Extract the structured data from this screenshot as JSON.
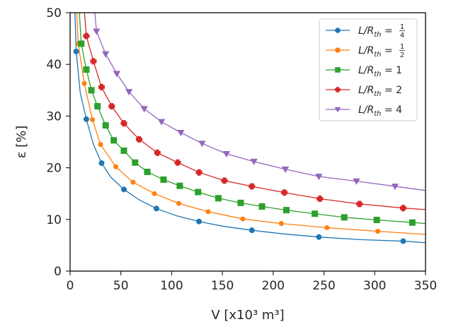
{
  "chart_data": {
    "type": "line",
    "xlabel": "V [x10³ m³]",
    "ylabel": "ε [%]",
    "xlim": [
      0,
      350
    ],
    "ylim": [
      0,
      50
    ],
    "x_ticks": [
      "0",
      "50",
      "100",
      "150",
      "200",
      "250",
      "300",
      "350"
    ],
    "y_ticks": [
      "0",
      "10",
      "20",
      "30",
      "40",
      "50"
    ],
    "grid": false,
    "legend_position": "top-right",
    "legend": [
      {
        "prefix": "L/R",
        "sub": "th",
        "eq": " = ",
        "frac_num": "1",
        "frac_den": "4",
        "value": "",
        "color": "#1f77b4",
        "marker": "circle"
      },
      {
        "prefix": "L/R",
        "sub": "th",
        "eq": " = ",
        "frac_num": "1",
        "frac_den": "2",
        "value": "",
        "color": "#ff7f0e",
        "marker": "circle"
      },
      {
        "prefix": "L/R",
        "sub": "th",
        "eq": " = ",
        "frac_num": "",
        "frac_den": "",
        "value": "1",
        "color": "#2ca02c",
        "marker": "square"
      },
      {
        "prefix": "L/R",
        "sub": "th",
        "eq": " = ",
        "frac_num": "",
        "frac_den": "",
        "value": "2",
        "color": "#d62728",
        "marker": "plus"
      },
      {
        "prefix": "L/R",
        "sub": "th",
        "eq": " = ",
        "frac_num": "",
        "frac_den": "",
        "value": "4",
        "color": "#9467bd",
        "marker": "triangle-down"
      }
    ],
    "series": [
      {
        "color": "#1f77b4",
        "marker": "circle",
        "marker_size": 4,
        "x": [
          6,
          16,
          31,
          53,
          85,
          127,
          179,
          245,
          328
        ],
        "y": [
          42.5,
          29.4,
          20.9,
          15.8,
          12.1,
          9.6,
          7.9,
          6.6,
          5.8
        ],
        "curve": [
          [
            3,
            60
          ],
          [
            6,
            42.5
          ],
          [
            10,
            34.5
          ],
          [
            16,
            29.4
          ],
          [
            23,
            24.5
          ],
          [
            31,
            20.9
          ],
          [
            40,
            18.2
          ],
          [
            53,
            15.8
          ],
          [
            68,
            13.8
          ],
          [
            85,
            12.1
          ],
          [
            105,
            10.7
          ],
          [
            127,
            9.6
          ],
          [
            150,
            8.7
          ],
          [
            179,
            7.9
          ],
          [
            210,
            7.2
          ],
          [
            245,
            6.6
          ],
          [
            285,
            6.1
          ],
          [
            328,
            5.8
          ],
          [
            350,
            5.5
          ]
        ]
      },
      {
        "color": "#ff7f0e",
        "marker": "circle",
        "marker_size": 3.5,
        "x": [
          8,
          14,
          22,
          30,
          45,
          62,
          83,
          107,
          136,
          170,
          208,
          253,
          303
        ],
        "y": [
          44.0,
          36.3,
          29.3,
          24.5,
          20.2,
          17.2,
          15.0,
          13.1,
          11.5,
          10.1,
          9.2,
          8.4,
          7.7
        ],
        "curve": [
          [
            4,
            60
          ],
          [
            8,
            44.0
          ],
          [
            14,
            36.3
          ],
          [
            22,
            29.3
          ],
          [
            30,
            24.5
          ],
          [
            45,
            20.2
          ],
          [
            62,
            17.2
          ],
          [
            83,
            15.0
          ],
          [
            107,
            13.1
          ],
          [
            136,
            11.5
          ],
          [
            170,
            10.1
          ],
          [
            208,
            9.2
          ],
          [
            253,
            8.4
          ],
          [
            303,
            7.7
          ],
          [
            350,
            7.1
          ]
        ]
      },
      {
        "color": "#2ca02c",
        "marker": "square",
        "marker_size": 4.5,
        "x": [
          11,
          16,
          21,
          27,
          35,
          43,
          53,
          64,
          76,
          92,
          108,
          126,
          146,
          168,
          189,
          213,
          241,
          270,
          302,
          337
        ],
        "y": [
          44.0,
          39.0,
          35.0,
          31.9,
          28.2,
          25.3,
          23.3,
          21.0,
          19.2,
          17.7,
          16.5,
          15.3,
          14.1,
          13.2,
          12.5,
          11.8,
          11.1,
          10.4,
          9.9,
          9.4
        ],
        "curve": [
          [
            6,
            60
          ],
          [
            11,
            44.0
          ],
          [
            16,
            39.0
          ],
          [
            21,
            35.0
          ],
          [
            27,
            31.9
          ],
          [
            35,
            28.2
          ],
          [
            43,
            25.3
          ],
          [
            53,
            23.3
          ],
          [
            64,
            21.0
          ],
          [
            76,
            19.2
          ],
          [
            92,
            17.7
          ],
          [
            108,
            16.5
          ],
          [
            126,
            15.3
          ],
          [
            146,
            14.1
          ],
          [
            168,
            13.2
          ],
          [
            189,
            12.5
          ],
          [
            213,
            11.8
          ],
          [
            241,
            11.1
          ],
          [
            270,
            10.4
          ],
          [
            302,
            9.9
          ],
          [
            337,
            9.4
          ],
          [
            350,
            9.2
          ]
        ]
      },
      {
        "color": "#d62728",
        "marker": "plus",
        "marker_size": 4.5,
        "x": [
          16,
          23,
          31,
          41,
          53,
          68,
          86,
          106,
          127,
          152,
          179,
          211,
          246,
          285,
          328
        ],
        "y": [
          45.5,
          40.6,
          35.6,
          31.9,
          28.6,
          25.5,
          22.9,
          21.0,
          19.1,
          17.5,
          16.4,
          15.2,
          14.0,
          13.0,
          12.2
        ],
        "curve": [
          [
            10,
            60
          ],
          [
            16,
            45.5
          ],
          [
            23,
            40.6
          ],
          [
            31,
            35.6
          ],
          [
            41,
            31.9
          ],
          [
            53,
            28.6
          ],
          [
            68,
            25.5
          ],
          [
            86,
            22.9
          ],
          [
            106,
            21.0
          ],
          [
            127,
            19.1
          ],
          [
            152,
            17.5
          ],
          [
            179,
            16.4
          ],
          [
            211,
            15.2
          ],
          [
            246,
            14.0
          ],
          [
            285,
            13.0
          ],
          [
            328,
            12.2
          ],
          [
            350,
            11.9
          ]
        ]
      },
      {
        "color": "#9467bd",
        "marker": "triangle-down",
        "marker_size": 4.5,
        "x": [
          26,
          35,
          46,
          58,
          73,
          90,
          109,
          130,
          154,
          181,
          212,
          245,
          282,
          320
        ],
        "y": [
          46.4,
          42.0,
          38.2,
          34.7,
          31.4,
          28.9,
          26.8,
          24.7,
          22.7,
          21.2,
          19.7,
          18.3,
          17.4,
          16.4
        ],
        "curve": [
          [
            20,
            60
          ],
          [
            26,
            46.4
          ],
          [
            35,
            42.0
          ],
          [
            46,
            38.2
          ],
          [
            58,
            34.7
          ],
          [
            73,
            31.4
          ],
          [
            90,
            28.9
          ],
          [
            109,
            26.8
          ],
          [
            130,
            24.7
          ],
          [
            154,
            22.7
          ],
          [
            181,
            21.2
          ],
          [
            212,
            19.7
          ],
          [
            245,
            18.3
          ],
          [
            282,
            17.4
          ],
          [
            320,
            16.4
          ],
          [
            350,
            15.6
          ]
        ]
      }
    ]
  }
}
